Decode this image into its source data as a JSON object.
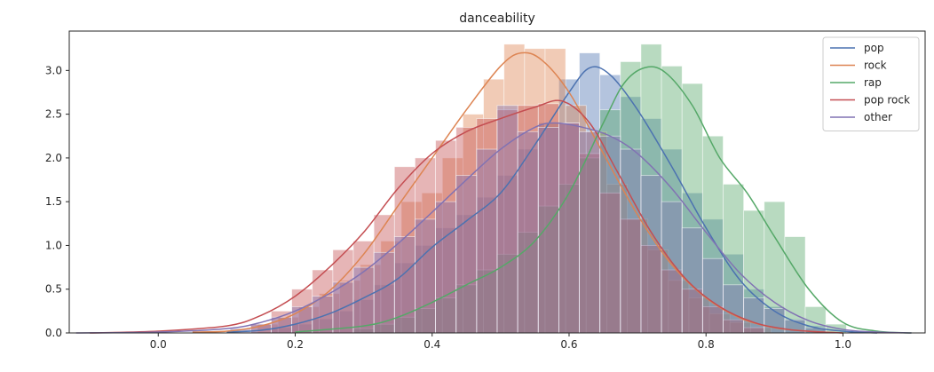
{
  "chart_data": {
    "type": "histogram",
    "title": "danceability",
    "xlabel": "",
    "ylabel": "",
    "xlim": [
      -0.13,
      1.12
    ],
    "ylim": [
      0,
      3.45
    ],
    "xticks": [
      "0.0",
      "0.2",
      "0.4",
      "0.6",
      "0.8",
      "1.0"
    ],
    "xtick_values": [
      0.0,
      0.2,
      0.4,
      0.6,
      0.8,
      1.0
    ],
    "yticks": [
      "0.0",
      "0.5",
      "1.0",
      "1.5",
      "2.0",
      "2.5",
      "3.0"
    ],
    "ytick_values": [
      0.0,
      0.5,
      1.0,
      1.5,
      2.0,
      2.5,
      3.0
    ],
    "grid": false,
    "legend_position": "top-right",
    "series": [
      {
        "name": "pop",
        "color": "#4c72b0",
        "bins": [
          [
            0.18,
            0.06
          ],
          [
            0.21,
            0.1
          ],
          [
            0.24,
            0.16
          ],
          [
            0.27,
            0.25
          ],
          [
            0.3,
            0.38
          ],
          [
            0.33,
            0.55
          ],
          [
            0.36,
            0.8
          ],
          [
            0.39,
            1.0
          ],
          [
            0.42,
            1.2
          ],
          [
            0.45,
            1.35
          ],
          [
            0.48,
            1.55
          ],
          [
            0.51,
            1.8
          ],
          [
            0.54,
            2.1
          ],
          [
            0.57,
            2.4
          ],
          [
            0.6,
            2.9
          ],
          [
            0.63,
            3.2
          ],
          [
            0.66,
            2.95
          ],
          [
            0.69,
            2.7
          ],
          [
            0.72,
            2.45
          ],
          [
            0.75,
            2.1
          ],
          [
            0.78,
            1.6
          ],
          [
            0.81,
            1.3
          ],
          [
            0.84,
            0.9
          ],
          [
            0.87,
            0.5
          ],
          [
            0.9,
            0.3
          ],
          [
            0.93,
            0.16
          ],
          [
            0.96,
            0.08
          ]
        ],
        "kde": [
          [
            0.1,
            0.01
          ],
          [
            0.15,
            0.03
          ],
          [
            0.2,
            0.1
          ],
          [
            0.25,
            0.22
          ],
          [
            0.3,
            0.4
          ],
          [
            0.35,
            0.62
          ],
          [
            0.4,
            0.98
          ],
          [
            0.45,
            1.28
          ],
          [
            0.5,
            1.6
          ],
          [
            0.55,
            2.15
          ],
          [
            0.6,
            2.75
          ],
          [
            0.63,
            3.03
          ],
          [
            0.66,
            2.95
          ],
          [
            0.7,
            2.55
          ],
          [
            0.75,
            1.9
          ],
          [
            0.8,
            1.2
          ],
          [
            0.85,
            0.6
          ],
          [
            0.9,
            0.25
          ],
          [
            0.95,
            0.08
          ],
          [
            1.0,
            0.02
          ],
          [
            1.05,
            0.0
          ]
        ]
      },
      {
        "name": "rock",
        "color": "#dd8452",
        "bins": [
          [
            0.16,
            0.1
          ],
          [
            0.19,
            0.18
          ],
          [
            0.22,
            0.3
          ],
          [
            0.25,
            0.45
          ],
          [
            0.28,
            0.6
          ],
          [
            0.31,
            0.78
          ],
          [
            0.34,
            1.05
          ],
          [
            0.37,
            1.5
          ],
          [
            0.4,
            1.6
          ],
          [
            0.43,
            2.0
          ],
          [
            0.46,
            2.5
          ],
          [
            0.49,
            2.9
          ],
          [
            0.52,
            3.3
          ],
          [
            0.55,
            3.25
          ],
          [
            0.58,
            3.25
          ],
          [
            0.61,
            2.6
          ],
          [
            0.64,
            2.3
          ],
          [
            0.67,
            1.7
          ],
          [
            0.7,
            1.3
          ],
          [
            0.73,
            0.95
          ],
          [
            0.76,
            0.6
          ],
          [
            0.79,
            0.4
          ],
          [
            0.82,
            0.22
          ],
          [
            0.85,
            0.12
          ],
          [
            0.88,
            0.06
          ]
        ],
        "kde": [
          [
            0.05,
            0.01
          ],
          [
            0.1,
            0.02
          ],
          [
            0.15,
            0.08
          ],
          [
            0.2,
            0.22
          ],
          [
            0.25,
            0.48
          ],
          [
            0.3,
            0.9
          ],
          [
            0.35,
            1.45
          ],
          [
            0.4,
            2.0
          ],
          [
            0.45,
            2.55
          ],
          [
            0.5,
            3.05
          ],
          [
            0.53,
            3.2
          ],
          [
            0.56,
            3.12
          ],
          [
            0.6,
            2.75
          ],
          [
            0.65,
            2.05
          ],
          [
            0.7,
            1.35
          ],
          [
            0.75,
            0.78
          ],
          [
            0.8,
            0.4
          ],
          [
            0.85,
            0.17
          ],
          [
            0.9,
            0.06
          ],
          [
            0.95,
            0.02
          ],
          [
            1.0,
            0.0
          ]
        ]
      },
      {
        "name": "rap",
        "color": "#55a868",
        "bins": [
          [
            0.3,
            0.05
          ],
          [
            0.33,
            0.1
          ],
          [
            0.36,
            0.18
          ],
          [
            0.39,
            0.28
          ],
          [
            0.42,
            0.4
          ],
          [
            0.45,
            0.55
          ],
          [
            0.48,
            0.72
          ],
          [
            0.51,
            0.9
          ],
          [
            0.54,
            1.15
          ],
          [
            0.57,
            1.45
          ],
          [
            0.6,
            1.7
          ],
          [
            0.63,
            2.0
          ],
          [
            0.66,
            2.55
          ],
          [
            0.69,
            3.1
          ],
          [
            0.72,
            3.3
          ],
          [
            0.75,
            3.05
          ],
          [
            0.78,
            2.85
          ],
          [
            0.81,
            2.25
          ],
          [
            0.84,
            1.7
          ],
          [
            0.87,
            1.4
          ],
          [
            0.9,
            1.5
          ],
          [
            0.93,
            1.1
          ],
          [
            0.96,
            0.3
          ],
          [
            0.99,
            0.1
          ]
        ],
        "kde": [
          [
            0.2,
            0.01
          ],
          [
            0.3,
            0.08
          ],
          [
            0.35,
            0.18
          ],
          [
            0.4,
            0.35
          ],
          [
            0.45,
            0.55
          ],
          [
            0.5,
            0.75
          ],
          [
            0.55,
            1.05
          ],
          [
            0.6,
            1.6
          ],
          [
            0.65,
            2.4
          ],
          [
            0.68,
            2.85
          ],
          [
            0.71,
            3.03
          ],
          [
            0.74,
            2.98
          ],
          [
            0.78,
            2.6
          ],
          [
            0.82,
            2.0
          ],
          [
            0.86,
            1.6
          ],
          [
            0.9,
            1.1
          ],
          [
            0.95,
            0.5
          ],
          [
            1.0,
            0.12
          ],
          [
            1.05,
            0.02
          ],
          [
            1.1,
            0.0
          ]
        ]
      },
      {
        "name": "pop rock",
        "color": "#c44e52",
        "bins": [
          [
            0.15,
            0.1
          ],
          [
            0.18,
            0.25
          ],
          [
            0.21,
            0.5
          ],
          [
            0.24,
            0.72
          ],
          [
            0.27,
            0.95
          ],
          [
            0.3,
            1.05
          ],
          [
            0.33,
            1.35
          ],
          [
            0.36,
            1.9
          ],
          [
            0.39,
            2.0
          ],
          [
            0.42,
            2.2
          ],
          [
            0.45,
            2.35
          ],
          [
            0.48,
            2.45
          ],
          [
            0.51,
            2.55
          ],
          [
            0.54,
            2.6
          ],
          [
            0.57,
            2.62
          ],
          [
            0.6,
            2.4
          ],
          [
            0.63,
            2.05
          ],
          [
            0.66,
            1.6
          ],
          [
            0.69,
            1.3
          ],
          [
            0.72,
            1.0
          ],
          [
            0.75,
            0.72
          ],
          [
            0.78,
            0.5
          ],
          [
            0.81,
            0.3
          ],
          [
            0.84,
            0.15
          ],
          [
            0.87,
            0.06
          ]
        ],
        "kde": [
          [
            -0.1,
            0.0
          ],
          [
            0.0,
            0.02
          ],
          [
            0.1,
            0.08
          ],
          [
            0.15,
            0.2
          ],
          [
            0.2,
            0.42
          ],
          [
            0.25,
            0.75
          ],
          [
            0.3,
            1.15
          ],
          [
            0.35,
            1.65
          ],
          [
            0.4,
            2.05
          ],
          [
            0.45,
            2.3
          ],
          [
            0.5,
            2.45
          ],
          [
            0.55,
            2.58
          ],
          [
            0.59,
            2.65
          ],
          [
            0.63,
            2.4
          ],
          [
            0.67,
            1.85
          ],
          [
            0.72,
            1.15
          ],
          [
            0.77,
            0.62
          ],
          [
            0.82,
            0.3
          ],
          [
            0.87,
            0.12
          ],
          [
            0.92,
            0.04
          ],
          [
            0.97,
            0.01
          ],
          [
            1.0,
            0.0
          ]
        ]
      },
      {
        "name": "other",
        "color": "#8172b3",
        "bins": [
          [
            0.12,
            0.05
          ],
          [
            0.15,
            0.1
          ],
          [
            0.18,
            0.18
          ],
          [
            0.21,
            0.3
          ],
          [
            0.24,
            0.42
          ],
          [
            0.27,
            0.58
          ],
          [
            0.3,
            0.75
          ],
          [
            0.33,
            0.92
          ],
          [
            0.36,
            1.1
          ],
          [
            0.39,
            1.3
          ],
          [
            0.42,
            1.5
          ],
          [
            0.45,
            1.8
          ],
          [
            0.48,
            2.1
          ],
          [
            0.51,
            2.6
          ],
          [
            0.54,
            2.3
          ],
          [
            0.57,
            2.35
          ],
          [
            0.6,
            2.4
          ],
          [
            0.63,
            2.3
          ],
          [
            0.66,
            2.25
          ],
          [
            0.69,
            2.1
          ],
          [
            0.72,
            1.8
          ],
          [
            0.75,
            1.5
          ],
          [
            0.78,
            1.2
          ],
          [
            0.81,
            0.85
          ],
          [
            0.84,
            0.55
          ],
          [
            0.87,
            0.4
          ],
          [
            0.9,
            0.28
          ],
          [
            0.93,
            0.15
          ],
          [
            0.96,
            0.06
          ]
        ],
        "kde": [
          [
            -0.12,
            0.0
          ],
          [
            0.0,
            0.01
          ],
          [
            0.1,
            0.05
          ],
          [
            0.15,
            0.12
          ],
          [
            0.2,
            0.25
          ],
          [
            0.25,
            0.45
          ],
          [
            0.3,
            0.7
          ],
          [
            0.35,
            1.02
          ],
          [
            0.4,
            1.38
          ],
          [
            0.45,
            1.75
          ],
          [
            0.5,
            2.1
          ],
          [
            0.55,
            2.35
          ],
          [
            0.58,
            2.4
          ],
          [
            0.62,
            2.35
          ],
          [
            0.66,
            2.25
          ],
          [
            0.7,
            2.05
          ],
          [
            0.75,
            1.65
          ],
          [
            0.8,
            1.15
          ],
          [
            0.85,
            0.68
          ],
          [
            0.9,
            0.35
          ],
          [
            0.95,
            0.14
          ],
          [
            1.0,
            0.04
          ],
          [
            1.05,
            0.01
          ],
          [
            1.1,
            0.0
          ]
        ]
      }
    ]
  }
}
